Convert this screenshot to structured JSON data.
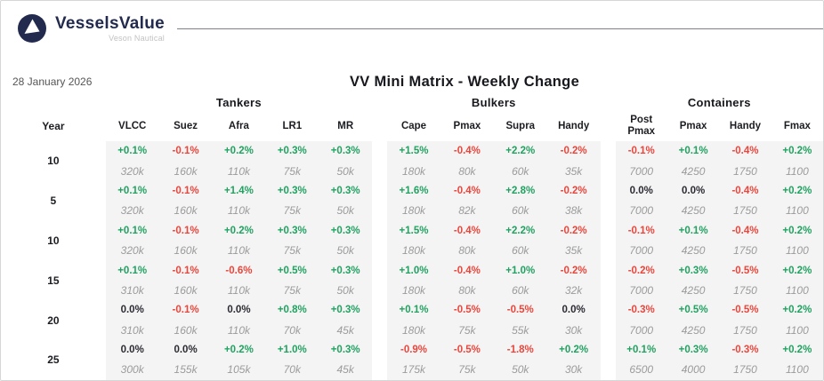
{
  "logo": {
    "name": "VesselsValue",
    "tagline": "Veson Nautical",
    "icon": "vesselsvalue-circle-sail-icon"
  },
  "report_date": "28 January 2026",
  "title": "VV Mini Matrix - Weekly Change",
  "colors": {
    "positive": "#21a261",
    "negative": "#e8463c",
    "neutral": "#2b2b33",
    "brand_navy": "#222b4d",
    "value_gray": "#9b9b9b",
    "block_background": "#f4f4f4"
  },
  "table": {
    "year_header": "Year",
    "groups": [
      {
        "key": "tankers",
        "name": "Tankers",
        "columns": [
          "VLCC",
          "Suez",
          "Afra",
          "LR1",
          "MR"
        ]
      },
      {
        "key": "bulkers",
        "name": "Bulkers",
        "columns": [
          "Cape",
          "Pmax",
          "Supra",
          "Handy"
        ]
      },
      {
        "key": "containers",
        "name": "Containers",
        "columns": [
          "Post Pmax",
          "Pmax",
          "Handy",
          "Fmax"
        ]
      }
    ],
    "rows": [
      {
        "year": "10",
        "tankers": {
          "pct": [
            "+0.1%",
            "-0.1%",
            "+0.2%",
            "+0.3%",
            "+0.3%"
          ],
          "val": [
            "320k",
            "160k",
            "110k",
            "75k",
            "50k"
          ]
        },
        "bulkers": {
          "pct": [
            "+1.5%",
            "-0.4%",
            "+2.2%",
            "-0.2%"
          ],
          "val": [
            "180k",
            "80k",
            "60k",
            "35k"
          ]
        },
        "containers": {
          "pct": [
            "-0.1%",
            "+0.1%",
            "-0.4%",
            "+0.2%"
          ],
          "val": [
            "7000",
            "4250",
            "1750",
            "1100"
          ]
        }
      },
      {
        "year": "5",
        "tankers": {
          "pct": [
            "+0.1%",
            "-0.1%",
            "+1.4%",
            "+0.3%",
            "+0.3%"
          ],
          "val": [
            "320k",
            "160k",
            "110k",
            "75k",
            "50k"
          ]
        },
        "bulkers": {
          "pct": [
            "+1.6%",
            "-0.4%",
            "+2.8%",
            "-0.2%"
          ],
          "val": [
            "180k",
            "82k",
            "60k",
            "38k"
          ]
        },
        "containers": {
          "pct": [
            "0.0%",
            "0.0%",
            "-0.4%",
            "+0.2%"
          ],
          "val": [
            "7000",
            "4250",
            "1750",
            "1100"
          ]
        }
      },
      {
        "year": "10",
        "tankers": {
          "pct": [
            "+0.1%",
            "-0.1%",
            "+0.2%",
            "+0.3%",
            "+0.3%"
          ],
          "val": [
            "320k",
            "160k",
            "110k",
            "75k",
            "50k"
          ]
        },
        "bulkers": {
          "pct": [
            "+1.5%",
            "-0.4%",
            "+2.2%",
            "-0.2%"
          ],
          "val": [
            "180k",
            "80k",
            "60k",
            "35k"
          ]
        },
        "containers": {
          "pct": [
            "-0.1%",
            "+0.1%",
            "-0.4%",
            "+0.2%"
          ],
          "val": [
            "7000",
            "4250",
            "1750",
            "1100"
          ]
        }
      },
      {
        "year": "15",
        "tankers": {
          "pct": [
            "+0.1%",
            "-0.1%",
            "-0.6%",
            "+0.5%",
            "+0.3%"
          ],
          "val": [
            "310k",
            "160k",
            "110k",
            "75k",
            "50k"
          ]
        },
        "bulkers": {
          "pct": [
            "+1.0%",
            "-0.4%",
            "+1.0%",
            "-0.2%"
          ],
          "val": [
            "180k",
            "80k",
            "60k",
            "32k"
          ]
        },
        "containers": {
          "pct": [
            "-0.2%",
            "+0.3%",
            "-0.5%",
            "+0.2%"
          ],
          "val": [
            "7000",
            "4250",
            "1750",
            "1100"
          ]
        }
      },
      {
        "year": "20",
        "tankers": {
          "pct": [
            "0.0%",
            "-0.1%",
            "0.0%",
            "+0.8%",
            "+0.3%"
          ],
          "val": [
            "310k",
            "160k",
            "110k",
            "70k",
            "45k"
          ]
        },
        "bulkers": {
          "pct": [
            "+0.1%",
            "-0.5%",
            "-0.5%",
            "0.0%"
          ],
          "val": [
            "180k",
            "75k",
            "55k",
            "30k"
          ]
        },
        "containers": {
          "pct": [
            "-0.3%",
            "+0.5%",
            "-0.5%",
            "+0.2%"
          ],
          "val": [
            "7000",
            "4250",
            "1750",
            "1100"
          ]
        }
      },
      {
        "year": "25",
        "tankers": {
          "pct": [
            "0.0%",
            "0.0%",
            "+0.2%",
            "+1.0%",
            "+0.3%"
          ],
          "val": [
            "300k",
            "155k",
            "105k",
            "70k",
            "45k"
          ]
        },
        "bulkers": {
          "pct": [
            "-0.9%",
            "-0.5%",
            "-1.8%",
            "+0.2%"
          ],
          "val": [
            "175k",
            "75k",
            "50k",
            "30k"
          ]
        },
        "containers": {
          "pct": [
            "+0.1%",
            "+0.3%",
            "-0.3%",
            "+0.2%"
          ],
          "val": [
            "6500",
            "4000",
            "1750",
            "1100"
          ]
        }
      }
    ]
  }
}
